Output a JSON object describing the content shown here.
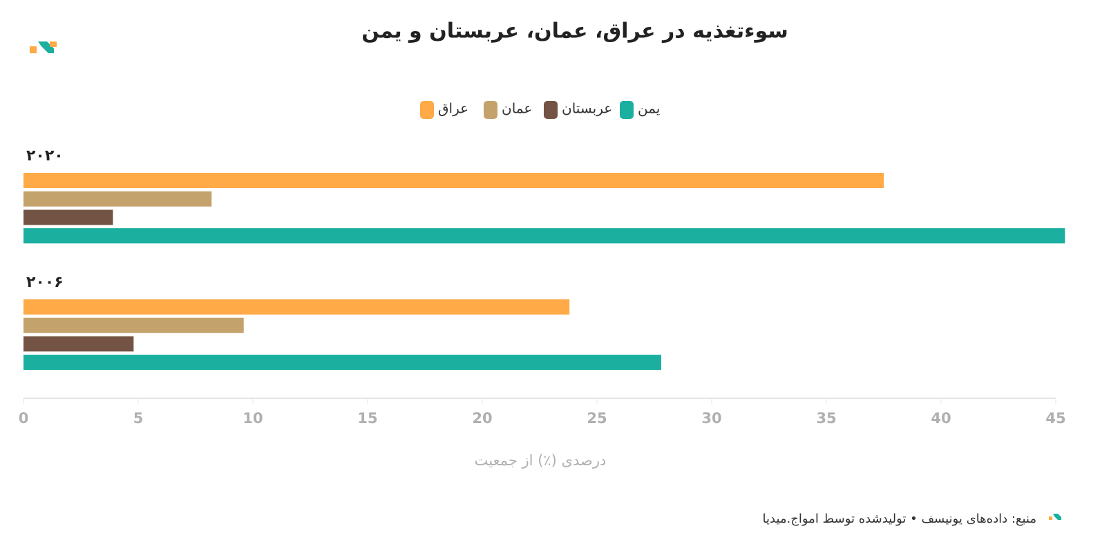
{
  "chart_data": {
    "type": "bar",
    "orientation": "horizontal",
    "title": "سوءتغذیه در عراق، عمان، عربستان و یمن",
    "categories": [
      "۲۰۲۰",
      "۲۰۰۶"
    ],
    "series": [
      {
        "name": "عراق",
        "color": "#ffa947",
        "values": [
          37.5,
          23.8
        ]
      },
      {
        "name": "عمان",
        "color": "#c4a26c",
        "values": [
          8.2,
          9.6
        ]
      },
      {
        "name": "عربستان",
        "color": "#735343",
        "values": [
          3.9,
          4.8
        ]
      },
      {
        "name": "یمن",
        "color": "#1aaf9f",
        "values": [
          45.4,
          27.8
        ]
      }
    ],
    "xlim": [
      0,
      45
    ],
    "xticks": [
      0,
      5,
      10,
      15,
      20,
      25,
      30,
      35,
      40,
      45
    ],
    "xlabel": "درصدی (٪) از جمعیت",
    "source": "منبع: داده‌های یونیسف • تولیدشده توسط امواج.میدیا"
  }
}
